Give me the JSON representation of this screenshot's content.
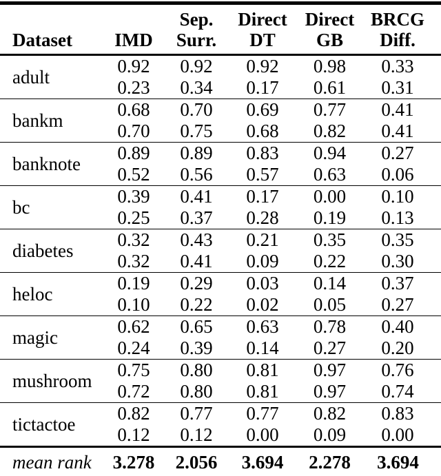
{
  "table": {
    "columns": [
      {
        "id": "dataset",
        "line1": "",
        "line2": "Dataset"
      },
      {
        "id": "imd",
        "line1": "",
        "line2": "IMD"
      },
      {
        "id": "sep-surr",
        "line1": "Sep.",
        "line2": "Surr."
      },
      {
        "id": "direct-dt",
        "line1": "Direct",
        "line2": "DT"
      },
      {
        "id": "direct-gb",
        "line1": "Direct",
        "line2": "GB"
      },
      {
        "id": "brcg-diff",
        "line1": "BRCG",
        "line2": "Diff."
      }
    ],
    "groups": [
      {
        "dataset": "adult",
        "rows": [
          [
            "0.92",
            "0.92",
            "0.92",
            "0.98",
            "0.33"
          ],
          [
            "0.23",
            "0.34",
            "0.17",
            "0.61",
            "0.31"
          ]
        ]
      },
      {
        "dataset": "bankm",
        "rows": [
          [
            "0.68",
            "0.70",
            "0.69",
            "0.77",
            "0.41"
          ],
          [
            "0.70",
            "0.75",
            "0.68",
            "0.82",
            "0.41"
          ]
        ]
      },
      {
        "dataset": "banknote",
        "rows": [
          [
            "0.89",
            "0.89",
            "0.83",
            "0.94",
            "0.27"
          ],
          [
            "0.52",
            "0.56",
            "0.57",
            "0.63",
            "0.06"
          ]
        ]
      },
      {
        "dataset": "bc",
        "rows": [
          [
            "0.39",
            "0.41",
            "0.17",
            "0.00",
            "0.10"
          ],
          [
            "0.25",
            "0.37",
            "0.28",
            "0.19",
            "0.13"
          ]
        ]
      },
      {
        "dataset": "diabetes",
        "rows": [
          [
            "0.32",
            "0.43",
            "0.21",
            "0.35",
            "0.35"
          ],
          [
            "0.32",
            "0.41",
            "0.09",
            "0.22",
            "0.30"
          ]
        ]
      },
      {
        "dataset": "heloc",
        "rows": [
          [
            "0.19",
            "0.29",
            "0.03",
            "0.14",
            "0.37"
          ],
          [
            "0.10",
            "0.22",
            "0.02",
            "0.05",
            "0.27"
          ]
        ]
      },
      {
        "dataset": "magic",
        "rows": [
          [
            "0.62",
            "0.65",
            "0.63",
            "0.78",
            "0.40"
          ],
          [
            "0.24",
            "0.39",
            "0.14",
            "0.27",
            "0.20"
          ]
        ]
      },
      {
        "dataset": "mushroom",
        "rows": [
          [
            "0.75",
            "0.80",
            "0.81",
            "0.97",
            "0.76"
          ],
          [
            "0.72",
            "0.80",
            "0.81",
            "0.97",
            "0.74"
          ]
        ]
      },
      {
        "dataset": "tictactoe",
        "rows": [
          [
            "0.82",
            "0.77",
            "0.77",
            "0.82",
            "0.83"
          ],
          [
            "0.12",
            "0.12",
            "0.00",
            "0.09",
            "0.00"
          ]
        ]
      }
    ],
    "footer": {
      "label": "mean rank",
      "values": [
        "3.278",
        "2.056",
        "3.694",
        "2.278",
        "3.694"
      ]
    },
    "colors": {
      "text": "#000000",
      "background": "#ffffff",
      "rule": "#000000"
    }
  }
}
